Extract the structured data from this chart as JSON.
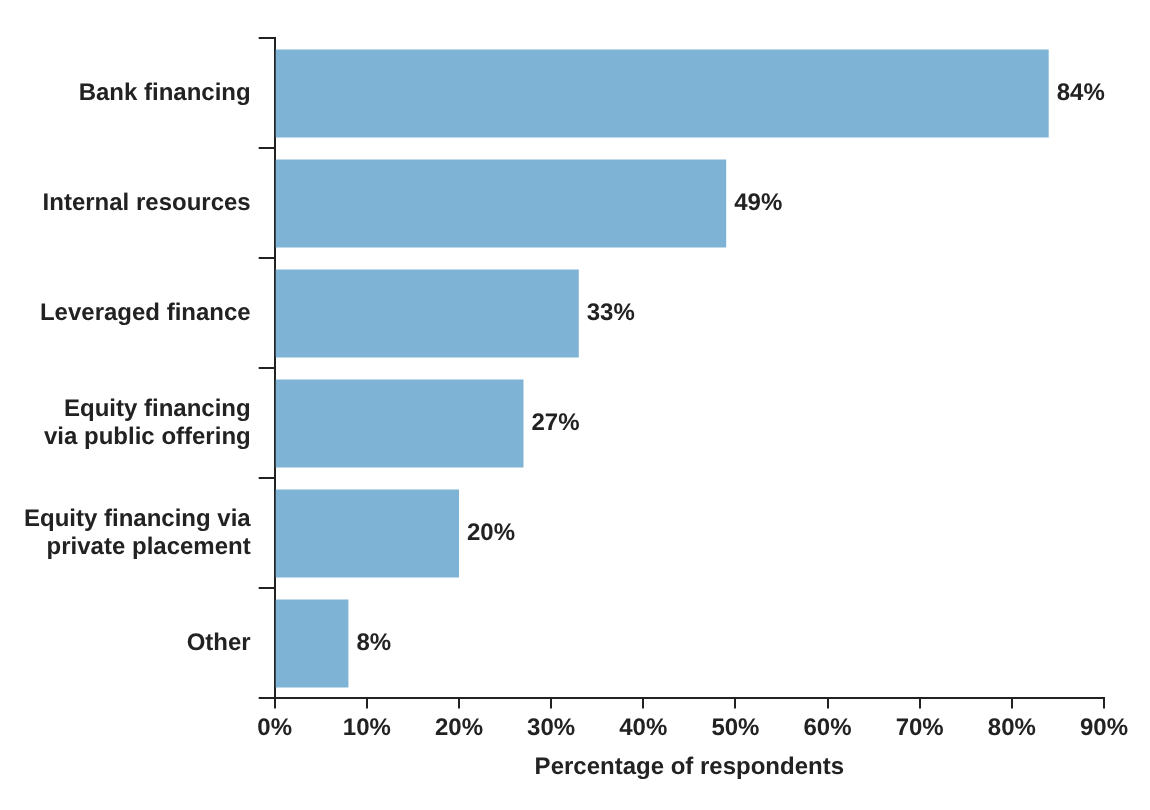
{
  "chart_data": {
    "type": "bar",
    "orientation": "horizontal",
    "xlabel": "Percentage of respondents",
    "categories": [
      "Bank financing",
      "Internal resources",
      "Leveraged finance",
      "Equity financing via public offering",
      "Equity financing via private placement",
      "Other"
    ],
    "values": [
      84,
      49,
      33,
      27,
      20,
      8
    ],
    "color": "#7fb3d5",
    "value_labels": [
      "84%",
      "49%",
      "33%",
      "27%",
      "20%",
      "8%"
    ],
    "xlim": [
      0,
      90
    ],
    "xticks": [
      {
        "value": 0,
        "label": "0%"
      },
      {
        "value": 10,
        "label": "10%"
      },
      {
        "value": 20,
        "label": "20%"
      },
      {
        "value": 30,
        "label": "30%"
      },
      {
        "value": 40,
        "label": "40%"
      },
      {
        "value": 50,
        "label": "50%"
      },
      {
        "value": 60,
        "label": "60%"
      },
      {
        "value": 70,
        "label": "70%"
      },
      {
        "value": 80,
        "label": "80%"
      },
      {
        "value": 90,
        "label": "90%"
      }
    ],
    "grid": false,
    "legend": false
  }
}
